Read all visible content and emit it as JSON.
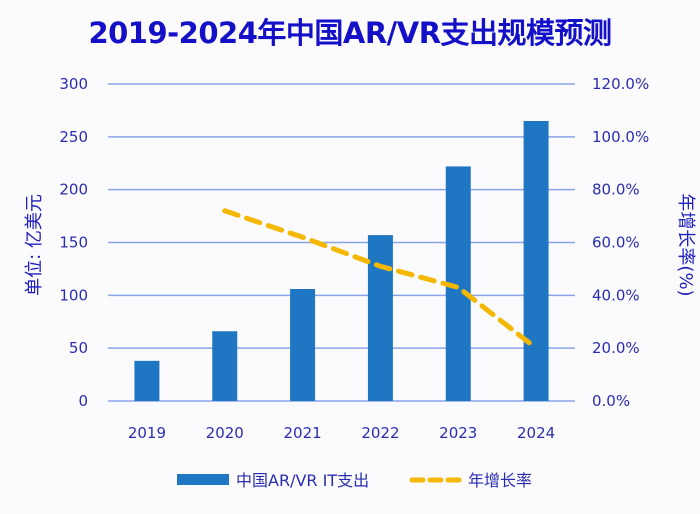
{
  "chart_data": {
    "type": "bar",
    "title": "2019-2024年中国AR/VR支出规模预测",
    "categories": [
      "2019",
      "2020",
      "2021",
      "2022",
      "2023",
      "2024"
    ],
    "series": [
      {
        "name": "中国AR/VR IT支出",
        "type": "bar",
        "axis": "left",
        "color": "#1f77c4",
        "values": [
          38,
          66,
          106,
          157,
          222,
          265
        ]
      },
      {
        "name": "年增长率",
        "type": "line",
        "style": "dashed",
        "axis": "right",
        "color": "#f5b800",
        "values": [
          null,
          72,
          62,
          51,
          43,
          20
        ]
      }
    ],
    "ylabel": "单位: 亿美元",
    "ylabel_right": "年增长率(%)",
    "ylim": [
      0,
      300
    ],
    "ylim_right": [
      0,
      120
    ],
    "yticks": [
      "0",
      "50",
      "100",
      "150",
      "200",
      "250",
      "300"
    ],
    "yticks_right": [
      "0.0%",
      "20.0%",
      "40.0%",
      "60.0%",
      "80.0%",
      "100.0%",
      "120.0%"
    ],
    "grid": true,
    "gridcolor": "#8aa4e8",
    "legend": "bottom"
  }
}
